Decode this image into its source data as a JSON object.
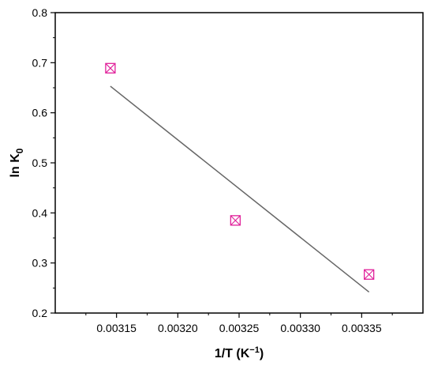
{
  "chart_data": {
    "type": "scatter",
    "xlabel": "1/T (K",
    "xlabel_superscript": "−1",
    "xlabel_suffix": ")",
    "ylabel": "ln K",
    "ylabel_subscript": "0",
    "xlim": [
      0.0031,
      0.0034
    ],
    "ylim": [
      0.2,
      0.8
    ],
    "x_ticks": [
      "0.00315",
      "0.00320",
      "0.00325",
      "0.00330",
      "0.00335"
    ],
    "y_ticks": [
      "0.2",
      "0.3",
      "0.4",
      "0.5",
      "0.6",
      "0.7",
      "0.8"
    ],
    "grid": false,
    "series": [
      {
        "marker": "square-with-x",
        "color": "#e0209a",
        "points": [
          {
            "x": 0.003145,
            "y": 0.689
          },
          {
            "x": 0.003247,
            "y": 0.385
          },
          {
            "x": 0.003356,
            "y": 0.277
          }
        ]
      }
    ],
    "fit_line": {
      "color": "#666666",
      "points": [
        {
          "x": 0.003145,
          "y": 0.653
        },
        {
          "x": 0.003356,
          "y": 0.242
        }
      ]
    }
  }
}
